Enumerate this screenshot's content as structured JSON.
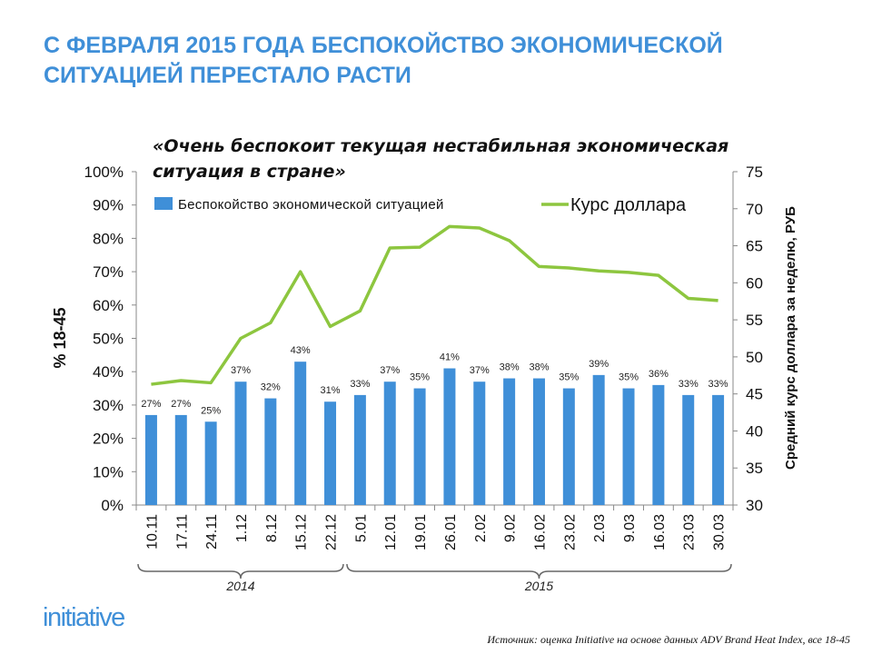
{
  "title": "С ФЕВРАЛЯ 2015 ГОДА БЕСПОКОЙСТВО ЭКОНОМИЧЕСКОЙ СИТУАЦИЕЙ ПЕРЕСТАЛО РАСТИ",
  "logo": "initiative",
  "source": "Источник: оценка Initiative на основе данных ADV Brand Heat Index, все 18-45",
  "colors": {
    "title": "#3f8fd8",
    "bars": "#3f8fd8",
    "line": "#8dc63f"
  },
  "chart_data": {
    "type": "bar+line",
    "title": "«Очень беспокоит текущая нестабильная экономическая ситуация в стране»",
    "categories": [
      "10.11",
      "17.11",
      "24.11",
      "1.12",
      "8.12",
      "15.12",
      "22.12",
      "5.01",
      "12.01",
      "19.01",
      "26.01",
      "2.02",
      "9.02",
      "16.02",
      "23.02",
      "2.03",
      "9.03",
      "16.03",
      "23.03",
      "30.03"
    ],
    "year_groups": [
      {
        "label": "2014",
        "from": 0,
        "to": 6
      },
      {
        "label": "2015",
        "from": 7,
        "to": 19
      }
    ],
    "series": [
      {
        "name": "Беспокойство экономической ситуацией",
        "type": "bar",
        "axis": "left",
        "values": [
          27,
          27,
          25,
          37,
          32,
          43,
          31,
          33,
          37,
          35,
          41,
          37,
          38,
          38,
          35,
          39,
          35,
          36,
          33,
          33
        ],
        "labels": [
          "27%",
          "27%",
          "25%",
          "37%",
          "32%",
          "43%",
          "31%",
          "33%",
          "37%",
          "35%",
          "41%",
          "37%",
          "38%",
          "38%",
          "35%",
          "39%",
          "35%",
          "36%",
          "33%",
          "33%"
        ]
      },
      {
        "name": "Курс доллара",
        "type": "line",
        "axis": "right",
        "values": [
          46.3,
          46.8,
          46.5,
          52.5,
          54.6,
          61.5,
          54.1,
          56.2,
          64.7,
          64.8,
          67.6,
          67.4,
          65.7,
          62.2,
          62.0,
          61.6,
          61.4,
          61.0,
          57.9,
          57.6
        ]
      }
    ],
    "ylabel_left": "% 18-45",
    "ylabel_right": "Средний курс доллара за неделю, РУБ",
    "ylim_left": [
      0,
      100
    ],
    "yticks_left": [
      "0%",
      "10%",
      "20%",
      "30%",
      "40%",
      "50%",
      "60%",
      "70%",
      "80%",
      "90%",
      "100%"
    ],
    "ylim_right": [
      30,
      75
    ],
    "yticks_right": [
      "30",
      "35",
      "40",
      "45",
      "50",
      "55",
      "60",
      "65",
      "70",
      "75"
    ],
    "legend": "top",
    "grid": false
  }
}
